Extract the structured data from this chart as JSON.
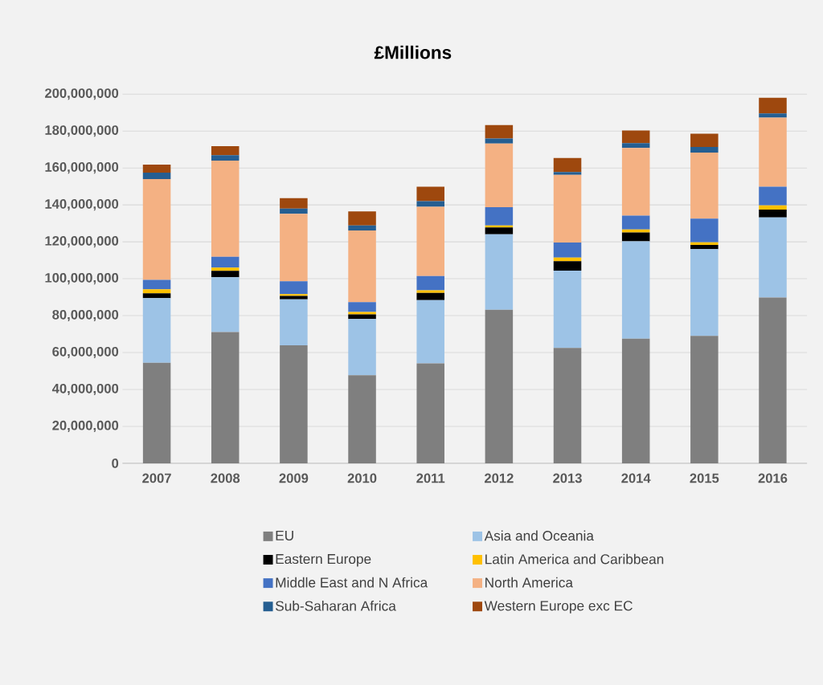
{
  "chart_data": {
    "type": "bar",
    "title": "£Millions",
    "stacked": true,
    "grid": "y",
    "legend": "bottom",
    "categories": [
      "2007",
      "2008",
      "2009",
      "2010",
      "2011",
      "2012",
      "2013",
      "2014",
      "2015",
      "2016"
    ],
    "ylim": [
      0,
      200000000
    ],
    "yticks": [
      {
        "value": 0,
        "label": "0"
      },
      {
        "value": 20000000,
        "label": "20,000,000"
      },
      {
        "value": 40000000,
        "label": "40,000,000"
      },
      {
        "value": 60000000,
        "label": "60,000,000"
      },
      {
        "value": 80000000,
        "label": "80,000,000"
      },
      {
        "value": 100000000,
        "label": "100,000,000"
      },
      {
        "value": 120000000,
        "label": "120,000,000"
      },
      {
        "value": 140000000,
        "label": "140,000,000"
      },
      {
        "value": 160000000,
        "label": "160,000,000"
      },
      {
        "value": 180000000,
        "label": "180,000,000"
      },
      {
        "value": 200000000,
        "label": "200,000,000"
      }
    ],
    "series": [
      {
        "name": "EU",
        "color": "#7f7f7f",
        "values": [
          54500000,
          71100000,
          63900000,
          47700000,
          54100000,
          83200000,
          62500000,
          67500000,
          69000000,
          89800000
        ]
      },
      {
        "name": "Asia and Oceania",
        "color": "#9dc3e6",
        "values": [
          35000000,
          29700000,
          24900000,
          30500000,
          34300000,
          40900000,
          41900000,
          52800000,
          47000000,
          43400000
        ]
      },
      {
        "name": "Eastern Europe",
        "color": "#000000",
        "values": [
          2600000,
          3500000,
          1900000,
          2500000,
          3900000,
          3700000,
          5100000,
          4800000,
          2300000,
          4200000
        ]
      },
      {
        "name": "Latin America and Caribbean",
        "color": "#ffc000",
        "values": [
          2200000,
          1700000,
          1000000,
          1300000,
          1400000,
          1100000,
          2000000,
          1600000,
          1400000,
          2300000
        ]
      },
      {
        "name": "Middle East and N Africa",
        "color": "#4472c4",
        "values": [
          5100000,
          5900000,
          6900000,
          5300000,
          7700000,
          9900000,
          8100000,
          7500000,
          12800000,
          10100000
        ]
      },
      {
        "name": "North America",
        "color": "#f4b183",
        "values": [
          54600000,
          52100000,
          36600000,
          38800000,
          37600000,
          34400000,
          36700000,
          36600000,
          35800000,
          37500000
        ]
      },
      {
        "name": "Sub-Saharan Africa",
        "color": "#255e91",
        "values": [
          3500000,
          2900000,
          2800000,
          2800000,
          3000000,
          2800000,
          1500000,
          2600000,
          3100000,
          2200000
        ]
      },
      {
        "name": "Western Europe exc EC",
        "color": "#9e480e",
        "values": [
          4300000,
          4900000,
          5600000,
          7600000,
          7800000,
          7200000,
          7600000,
          6900000,
          7200000,
          8500000
        ]
      }
    ]
  }
}
